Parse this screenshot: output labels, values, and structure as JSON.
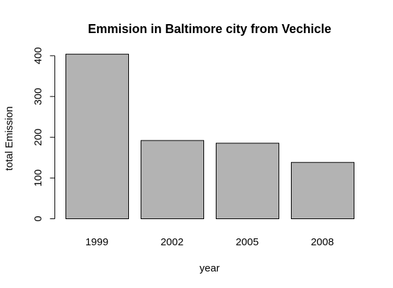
{
  "chart_data": {
    "type": "bar",
    "title": "Emmision in Baltimore city from Vechicle",
    "xlabel": "year",
    "ylabel": "total Emission",
    "categories": [
      "1999",
      "2002",
      "2005",
      "2008"
    ],
    "values": [
      403.8,
      192.0,
      185.4,
      138.2
    ],
    "ylim": [
      0,
      410
    ],
    "yticks": [
      0,
      100,
      200,
      300,
      400
    ],
    "ytick_labels": [
      "0",
      "100",
      "200",
      "300",
      "400"
    ],
    "bar_color": "#b3b3b3",
    "grid": false,
    "legend": "none"
  }
}
